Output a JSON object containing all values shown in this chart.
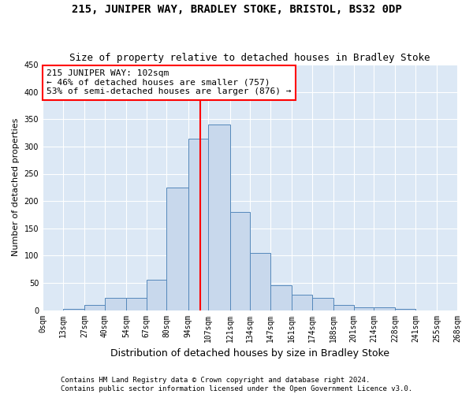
{
  "title": "215, JUNIPER WAY, BRADLEY STOKE, BRISTOL, BS32 0DP",
  "subtitle": "Size of property relative to detached houses in Bradley Stoke",
  "xlabel": "Distribution of detached houses by size in Bradley Stoke",
  "ylabel": "Number of detached properties",
  "bar_color": "#c8d8ec",
  "bar_edge_color": "#5588bb",
  "vline_x": 102,
  "vline_color": "red",
  "annotation_text": "215 JUNIPER WAY: 102sqm\n← 46% of detached houses are smaller (757)\n53% of semi-detached houses are larger (876) →",
  "annotation_box_color": "white",
  "annotation_box_edge": "red",
  "bins": [
    0,
    13,
    27,
    40,
    54,
    67,
    80,
    94,
    107,
    121,
    134,
    147,
    161,
    174,
    188,
    201,
    214,
    228,
    241,
    255,
    268
  ],
  "counts": [
    0,
    2,
    10,
    22,
    22,
    55,
    225,
    315,
    340,
    180,
    105,
    45,
    28,
    22,
    10,
    5,
    5,
    2,
    0,
    0
  ],
  "ylim": [
    0,
    450
  ],
  "yticks": [
    0,
    50,
    100,
    150,
    200,
    250,
    300,
    350,
    400,
    450
  ],
  "footer1": "Contains HM Land Registry data © Crown copyright and database right 2024.",
  "footer2": "Contains public sector information licensed under the Open Government Licence v3.0.",
  "plot_background": "#dce8f5",
  "title_fontsize": 10,
  "subtitle_fontsize": 9,
  "tick_label_fontsize": 7,
  "ylabel_fontsize": 8,
  "xlabel_fontsize": 9,
  "footer_fontsize": 6.5,
  "annotation_fontsize": 8
}
